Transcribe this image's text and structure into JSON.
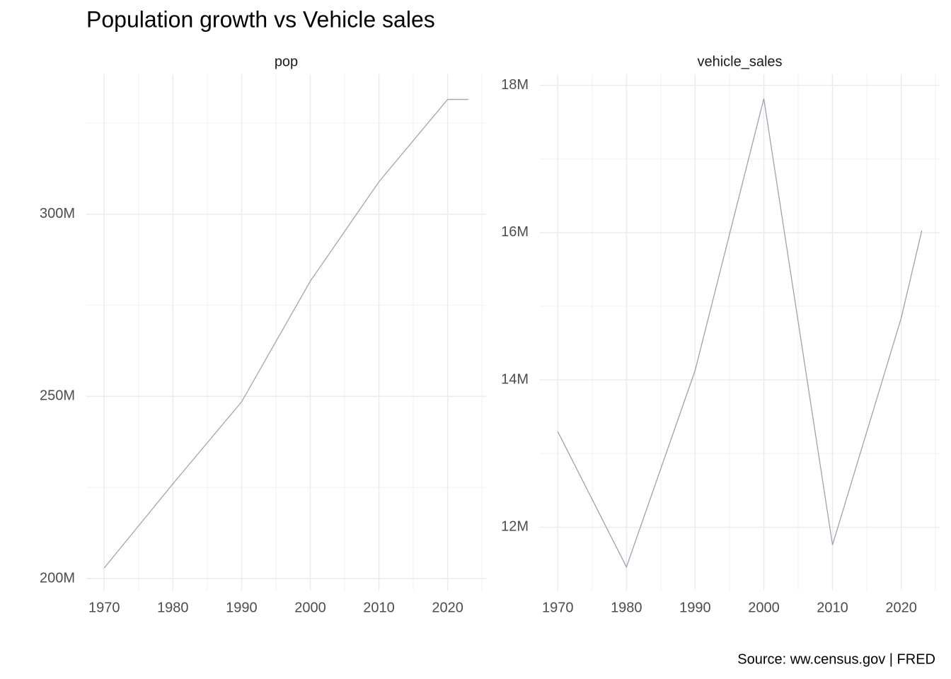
{
  "title": "Population growth vs Vehicle sales",
  "caption": "Source: ww.census.gov | FRED",
  "chart_data": [
    {
      "type": "line",
      "title": "pop",
      "x": [
        1970,
        1980,
        1990,
        2000,
        2010,
        2020,
        2023
      ],
      "series": [
        {
          "color": "#a6a6a6",
          "values": [
            202900000,
            226000000,
            248500000,
            281600000,
            308900000,
            331500000,
            331500000
          ]
        }
      ],
      "xlim": [
        1967.4,
        2025.6
      ],
      "xticks": [
        1970,
        1980,
        1990,
        2000,
        2010,
        2020
      ],
      "minor_xticks": [
        1975,
        1985,
        1995,
        2005,
        2015,
        2025
      ],
      "ylim": [
        196700000,
        338400000
      ],
      "yticks": [
        {
          "value": 200000000,
          "label": "200M"
        },
        {
          "value": 250000000,
          "label": "250M"
        },
        {
          "value": 300000000,
          "label": "300M"
        }
      ],
      "minor_yticks": [
        225000000,
        275000000,
        325000000
      ],
      "grid": true
    },
    {
      "type": "line",
      "title": "vehicle_sales",
      "x": [
        1970,
        1980,
        1990,
        2000,
        2010,
        2020,
        2023
      ],
      "series": [
        {
          "color": "#9aa3ad",
          "values": [
            13300000,
            11460000,
            14130000,
            17820000,
            11760000,
            14840000,
            16030000
          ]
        }
      ],
      "xlim": [
        1967.4,
        2025.6
      ],
      "xticks": [
        1970,
        1980,
        1990,
        2000,
        2010,
        2020
      ],
      "minor_xticks": [
        1975,
        1985,
        1995,
        2005,
        2015,
        2025
      ],
      "ylim": [
        11140000,
        18150000
      ],
      "yticks": [
        {
          "value": 12000000,
          "label": "12M"
        },
        {
          "value": 14000000,
          "label": "14M"
        },
        {
          "value": 16000000,
          "label": "16M"
        },
        {
          "value": 18000000,
          "label": "18M"
        }
      ],
      "minor_yticks": [
        13000000,
        15000000,
        17000000
      ],
      "grid": true
    }
  ]
}
